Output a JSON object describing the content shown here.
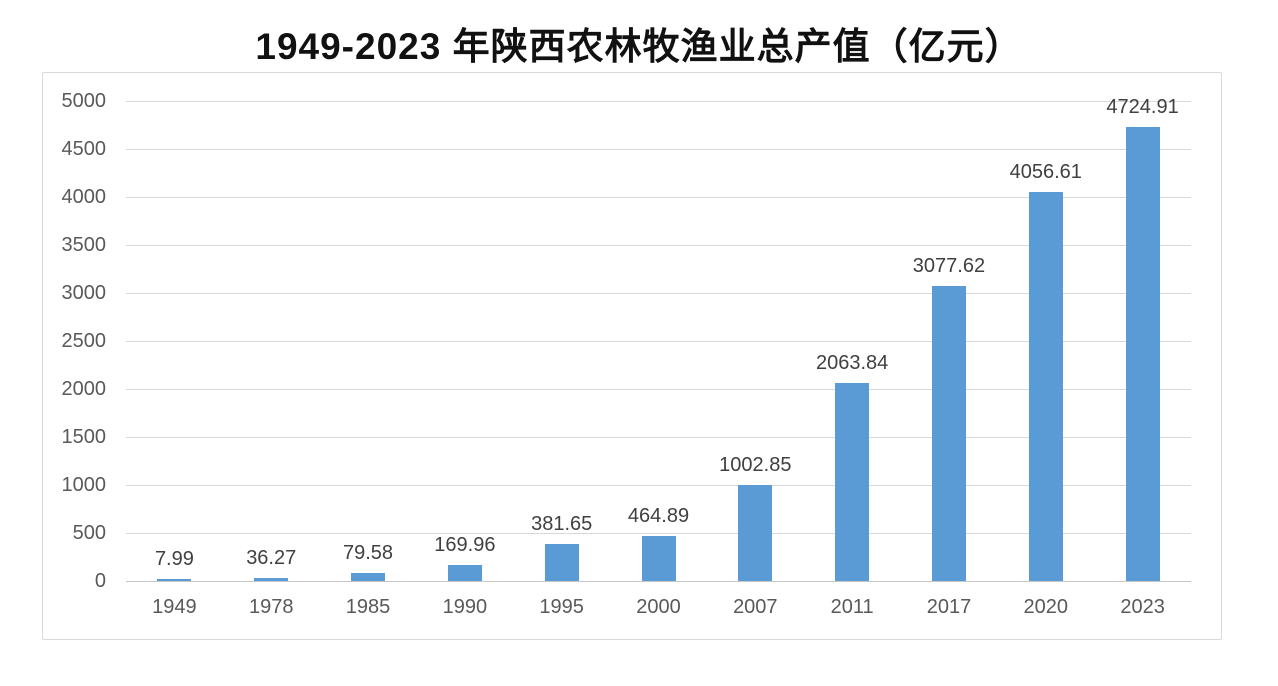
{
  "page": {
    "title": "1949-2023 年陕西农林牧渔业总产值（亿元）"
  },
  "chart_data": {
    "type": "bar",
    "title": "1949-2023 年陕西农林牧渔业总产值（亿元）",
    "unit": "亿元",
    "categories": [
      "1949",
      "1978",
      "1985",
      "1990",
      "1995",
      "2000",
      "2007",
      "2011",
      "2017",
      "2020",
      "2023"
    ],
    "values": [
      7.99,
      36.27,
      79.58,
      169.96,
      381.65,
      464.89,
      1002.85,
      2063.84,
      3077.62,
      4056.61,
      4724.91
    ],
    "value_labels": [
      "7.99",
      "36.27",
      "79.58",
      "169.96",
      "381.65",
      "464.89",
      "1002.85",
      "2063.84",
      "3077.62",
      "4056.61",
      "4724.91"
    ],
    "ylim": [
      0,
      5000
    ],
    "ytick_step": 500,
    "yticks": [
      0,
      500,
      1000,
      1500,
      2000,
      2500,
      3000,
      3500,
      4000,
      4500,
      5000
    ],
    "grid": true,
    "legend": "none",
    "data_labels": "above bars",
    "colors": {
      "bar": "#5b9bd5",
      "value_label": "#404040",
      "axis_text": "#595959",
      "gridline": "#d9d9d9",
      "axis_line": "#c6c6c6",
      "chart_border": "#d9d9d9",
      "title_text": "#111111"
    }
  }
}
